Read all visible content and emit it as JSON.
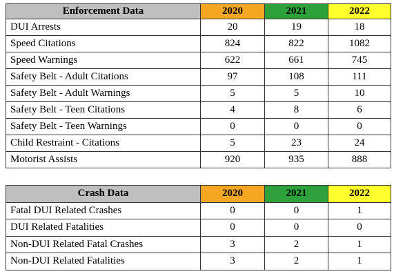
{
  "tables": [
    {
      "headers": [
        "Enforcement Data",
        "2020",
        "2021",
        "2022"
      ],
      "rows": [
        [
          "DUI Arrests",
          20,
          19,
          18
        ],
        [
          "Speed Citations",
          824,
          822,
          1082
        ],
        [
          "Speed Warnings",
          622,
          661,
          745
        ],
        [
          "Safety Belt - Adult Citations",
          97,
          108,
          111
        ],
        [
          "Safety Belt - Adult Warnings",
          5,
          5,
          10
        ],
        [
          "Safety Belt - Teen Citations",
          4,
          8,
          6
        ],
        [
          "Safety Belt - Teen Warnings",
          0,
          0,
          0
        ],
        [
          "Child Restraint - Citations",
          5,
          23,
          24
        ],
        [
          "Motorist Assists",
          920,
          935,
          888
        ]
      ]
    },
    {
      "headers": [
        "Crash Data",
        "2020",
        "2021",
        "2022"
      ],
      "rows": [
        [
          "Fatal DUI Related Crashes",
          0,
          0,
          1
        ],
        [
          "DUI Related Fatalities",
          0,
          0,
          0
        ],
        [
          "Non-DUI Related Fatal Crashes",
          3,
          2,
          1
        ],
        [
          "Non-DUI Related Fatalities",
          3,
          2,
          1
        ]
      ]
    }
  ]
}
